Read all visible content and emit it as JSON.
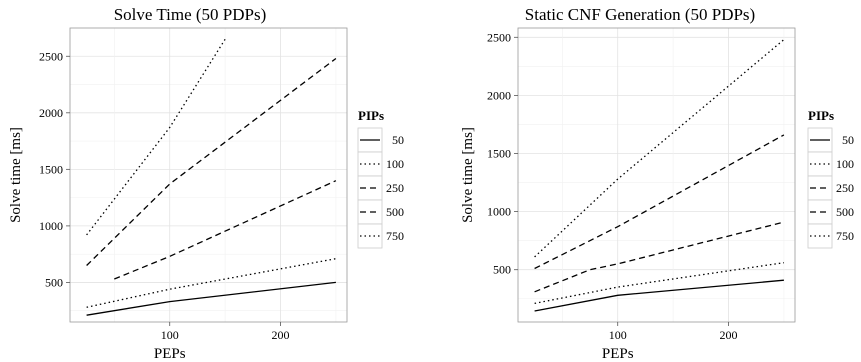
{
  "chart_data": [
    {
      "type": "line",
      "title": "Solve Time (50 PDPs)",
      "xlabel": "PEPs",
      "ylabel": "Solve time [ms]",
      "xticks": [
        100,
        200
      ],
      "yticks": [
        500,
        1000,
        1500,
        2000,
        2500
      ],
      "xlim": [
        10,
        260
      ],
      "ylim": [
        150,
        2750
      ],
      "grid": true,
      "legend_title": "PIPs",
      "legend_position": "right",
      "series": [
        {
          "name": "50",
          "dash": "solid",
          "x": [
            25,
            100,
            250
          ],
          "y": [
            210,
            330,
            500
          ]
        },
        {
          "name": "100",
          "dash": "dot",
          "x": [
            25,
            100,
            250
          ],
          "y": [
            280,
            440,
            710
          ]
        },
        {
          "name": "250",
          "dash": "dash",
          "x": [
            50,
            100,
            250
          ],
          "y": [
            530,
            730,
            1400
          ]
        },
        {
          "name": "500",
          "dash": "dash",
          "x": [
            25,
            100,
            250
          ],
          "y": [
            650,
            1370,
            2480
          ]
        },
        {
          "name": "750",
          "dash": "dot",
          "x": [
            25,
            100,
            150
          ],
          "y": [
            920,
            1870,
            2650
          ]
        }
      ]
    },
    {
      "type": "line",
      "title": "Static CNF Generation (50 PDPs)",
      "xlabel": "PEPs",
      "ylabel": "Solve time [ms]",
      "xticks": [
        100,
        200
      ],
      "yticks": [
        500,
        1000,
        1500,
        2000,
        2500
      ],
      "xlim": [
        10,
        260
      ],
      "ylim": [
        50,
        2580
      ],
      "grid": true,
      "legend_title": "PIPs",
      "legend_position": "right",
      "series": [
        {
          "name": "50",
          "dash": "solid",
          "x": [
            25,
            100,
            250
          ],
          "y": [
            145,
            280,
            410
          ]
        },
        {
          "name": "100",
          "dash": "dot",
          "x": [
            25,
            100,
            250
          ],
          "y": [
            210,
            350,
            560
          ]
        },
        {
          "name": "250",
          "dash": "dash",
          "x": [
            25,
            75,
            100,
            250
          ],
          "y": [
            310,
            500,
            550,
            910
          ]
        },
        {
          "name": "500",
          "dash": "dash",
          "x": [
            25,
            100,
            250
          ],
          "y": [
            510,
            870,
            1660
          ]
        },
        {
          "name": "750",
          "dash": "dot",
          "x": [
            25,
            100,
            250
          ],
          "y": [
            610,
            1280,
            2480
          ]
        }
      ]
    }
  ]
}
